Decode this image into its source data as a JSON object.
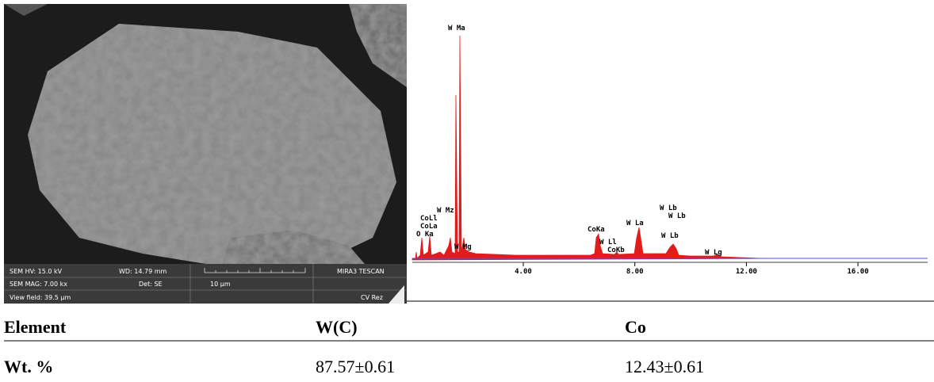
{
  "sem_image": {
    "hv": "SEM HV: 15.0 kV",
    "wd": "WD: 14.79 mm",
    "brand": "MIRA3 TESCAN",
    "mag": "SEM MAG: 7.00 kx",
    "det": "Det: SE",
    "scale": "10 µm",
    "view_field": "View field: 39.5 µm",
    "lab": "CV Rez"
  },
  "spectrum": {
    "peak_labels": [
      "W Ma",
      "W Mz",
      "CoLl",
      "CoLa",
      "O Ka",
      "W Mg",
      "CoKa",
      "W Ll",
      "CoKb",
      "W La",
      "W Lb",
      "W Lb",
      "W Lb",
      "W Lg"
    ],
    "xlim": [
      0,
      18.5
    ],
    "xticks": [
      {
        "value": 4,
        "label": "4.00"
      },
      {
        "value": 8,
        "label": "8.00"
      },
      {
        "value": 12,
        "label": "12.00"
      },
      {
        "value": 16,
        "label": "16.00"
      }
    ]
  },
  "table": {
    "header": [
      "Element",
      "W(C)",
      "Co"
    ],
    "rows": [
      [
        "Wt. %",
        "87.57±0.61",
        "12.43±0.61"
      ]
    ]
  }
}
